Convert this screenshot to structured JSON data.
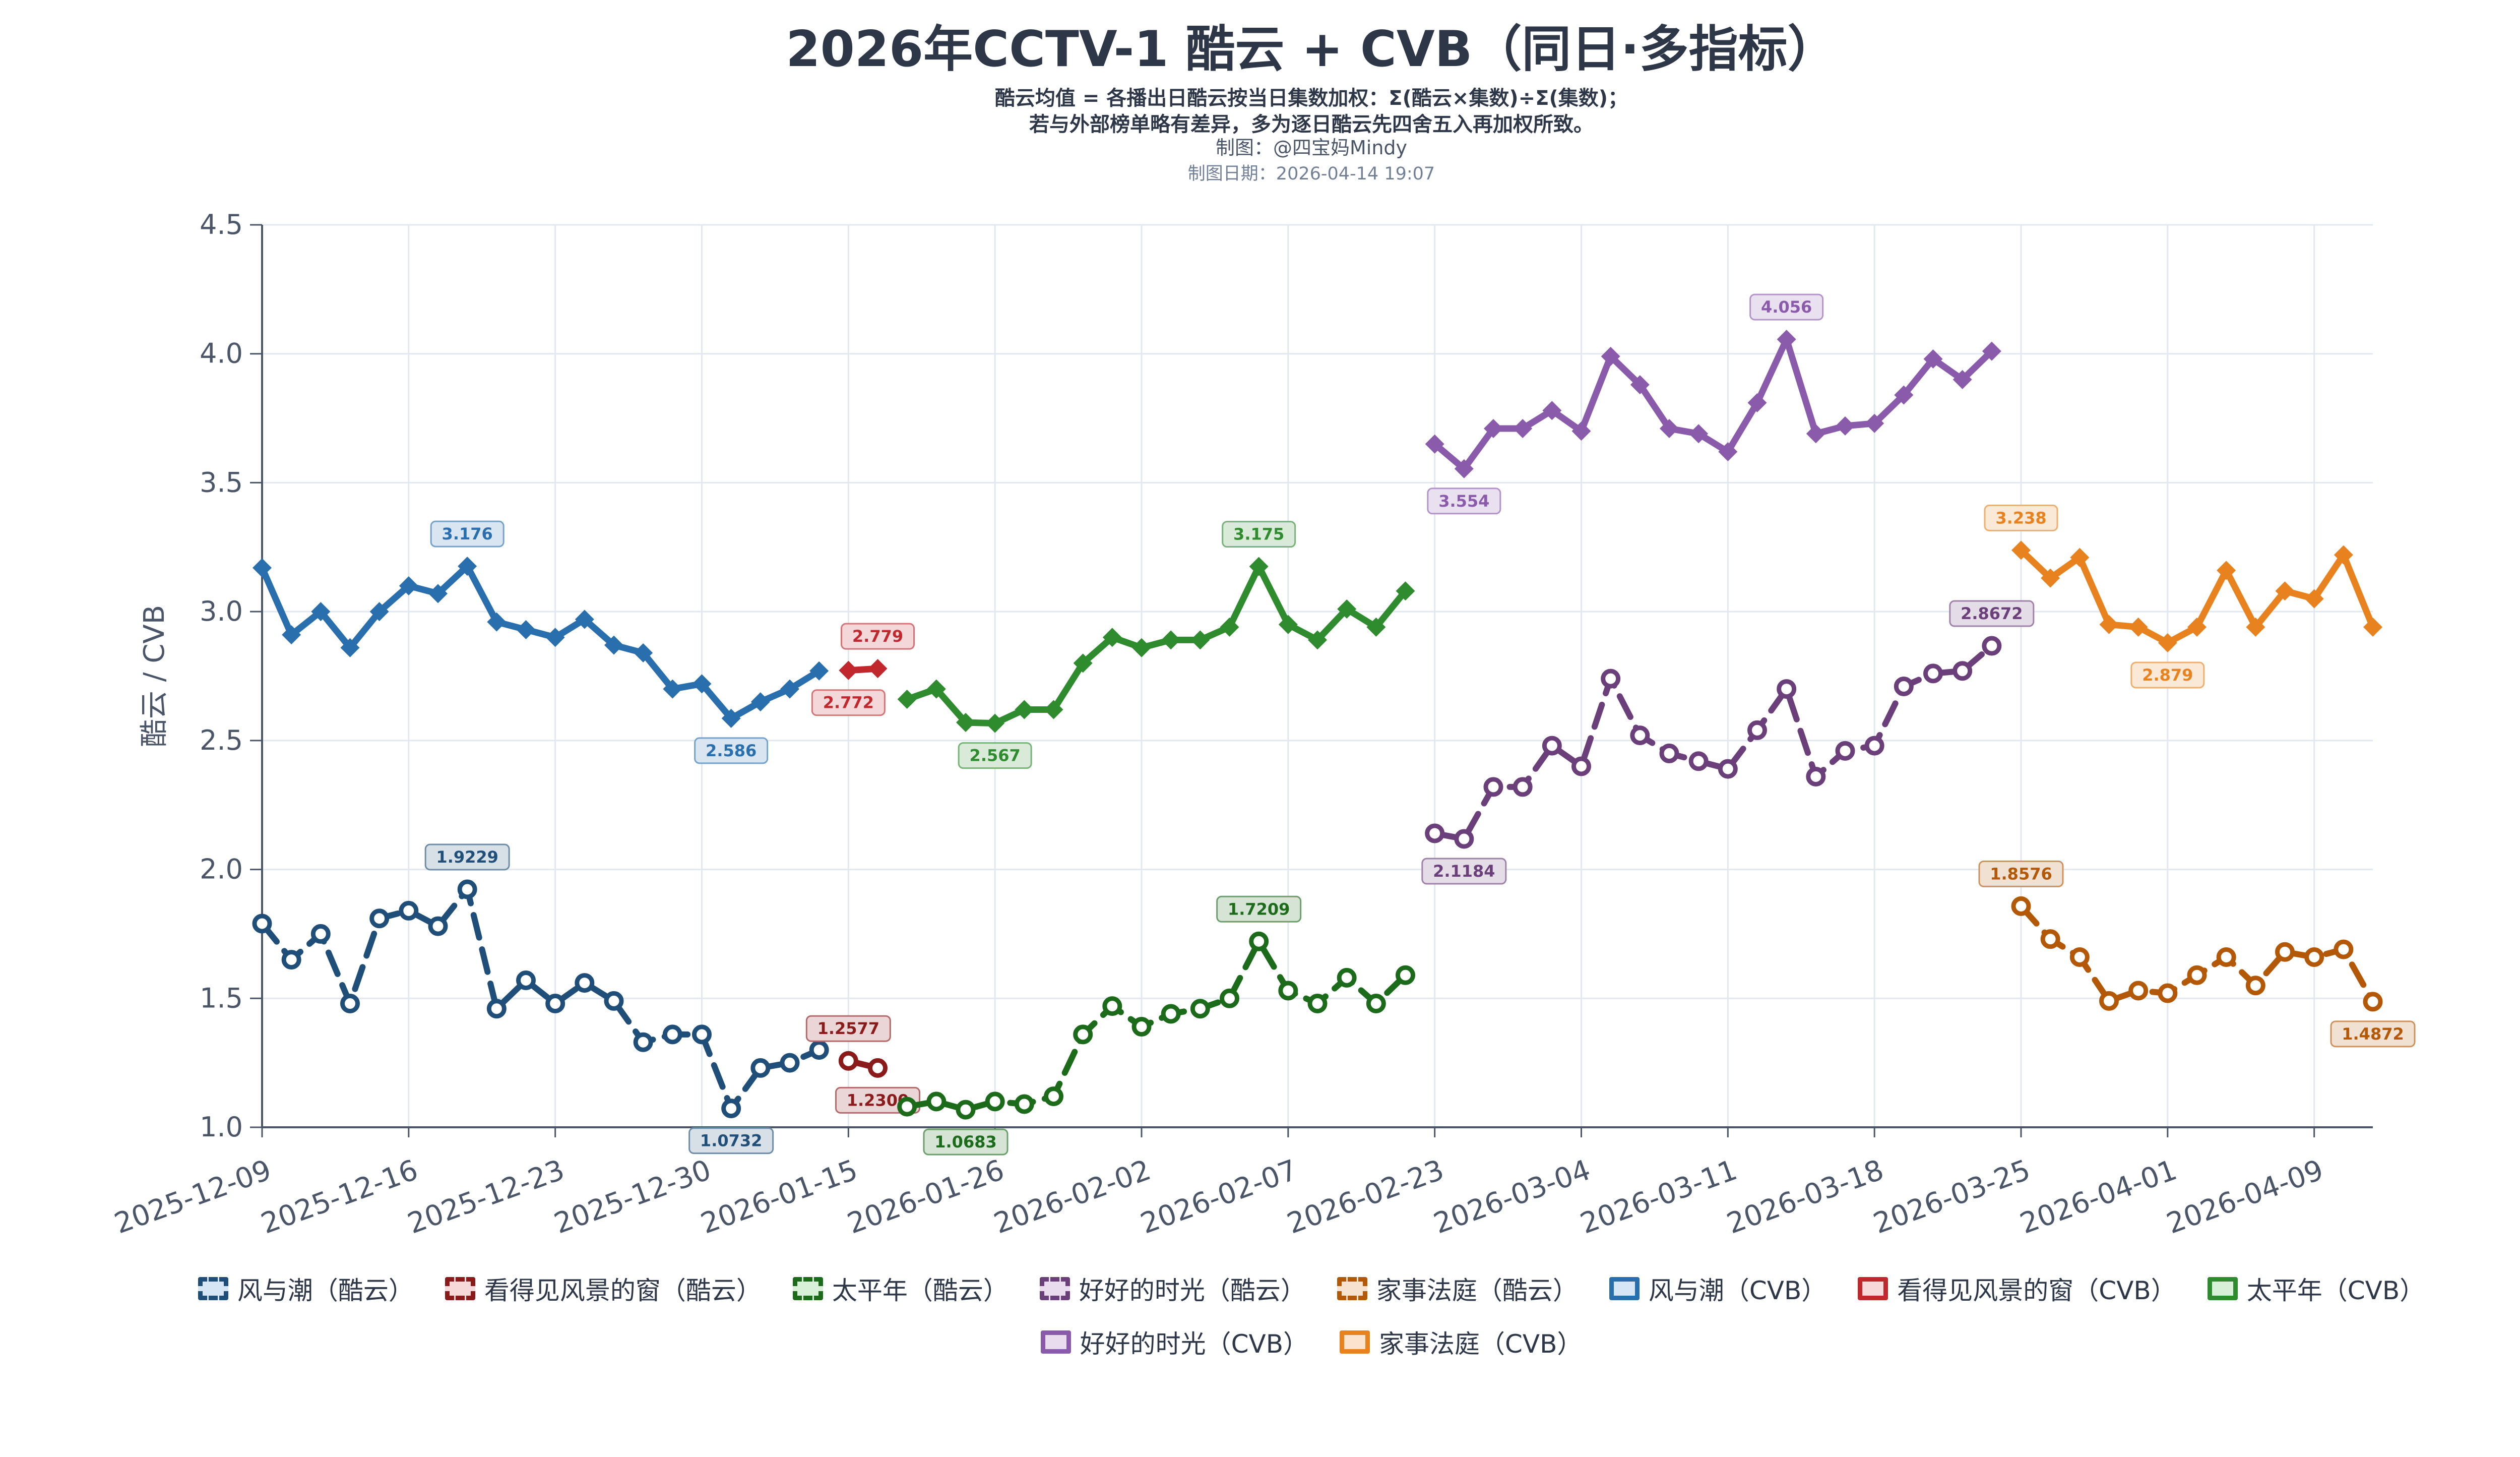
{
  "header": {
    "title": "2026年CCTV-1 酷云 + CVB（同日·多指标）",
    "subtitle_line1": "酷云均值 = 各播出日酷云按当日集数加权：Σ(酷云×集数)÷Σ(集数)；",
    "subtitle_line2": "若与外部榜单略有差异，多为逐日酷云先四舍五入再加权所致。",
    "author": "制图：@四宝妈Mindy",
    "date": "制图日期：2026-04-14 19:07"
  },
  "chart_data": {
    "type": "line",
    "ylabel": "酷云 / CVB",
    "ylim": [
      1.0,
      4.5
    ],
    "yticks": [
      "1.0",
      "1.5",
      "2.0",
      "2.5",
      "3.0",
      "3.5",
      "4.0",
      "4.5"
    ],
    "x_range": [
      0,
      72
    ],
    "xticks": [
      {
        "label": "2025-12-09",
        "x": 0
      },
      {
        "label": "2025-12-16",
        "x": 5
      },
      {
        "label": "2025-12-23",
        "x": 10
      },
      {
        "label": "2025-12-30",
        "x": 15
      },
      {
        "label": "2026-01-15",
        "x": 20
      },
      {
        "label": "2026-01-26",
        "x": 25
      },
      {
        "label": "2026-02-02",
        "x": 30
      },
      {
        "label": "2026-02-07",
        "x": 35
      },
      {
        "label": "2026-02-23",
        "x": 40
      },
      {
        "label": "2026-03-04",
        "x": 45
      },
      {
        "label": "2026-03-11",
        "x": 50
      },
      {
        "label": "2026-03-18",
        "x": 55
      },
      {
        "label": "2026-03-25",
        "x": 60
      },
      {
        "label": "2026-04-01",
        "x": 65
      },
      {
        "label": "2026-04-09",
        "x": 70
      }
    ],
    "series": [
      {
        "name": "风与潮（酷云）",
        "metric": "kuyun",
        "color": "#1f4e79",
        "x_start": 0,
        "values": [
          1.79,
          1.65,
          1.75,
          1.48,
          1.81,
          1.84,
          1.78,
          1.9229,
          1.46,
          1.57,
          1.48,
          1.56,
          1.49,
          1.33,
          1.36,
          1.36,
          1.0732,
          1.23,
          1.25,
          1.3
        ],
        "labels": [
          {
            "i": 7,
            "text": "1.9229",
            "pos": "above"
          },
          {
            "i": 16,
            "text": "1.0732",
            "pos": "below"
          }
        ]
      },
      {
        "name": "看得见风景的窗（酷云）",
        "metric": "kuyun",
        "color": "#8b1a1a",
        "x_start": 20,
        "values": [
          1.2577,
          1.23
        ],
        "labels": [
          {
            "i": 0,
            "text": "1.2577",
            "pos": "above"
          },
          {
            "i": 1,
            "text": "1.2300",
            "pos": "below"
          }
        ]
      },
      {
        "name": "太平年（酷云）",
        "metric": "kuyun",
        "color": "#1b6b1b",
        "x_start": 22,
        "values": [
          1.08,
          1.1,
          1.0683,
          1.1,
          1.09,
          1.12,
          1.36,
          1.47,
          1.39,
          1.44,
          1.46,
          1.5,
          1.7209,
          1.53,
          1.48,
          1.58,
          1.48,
          1.59
        ],
        "labels": [
          {
            "i": 2,
            "text": "1.0683",
            "pos": "below"
          },
          {
            "i": 12,
            "text": "1.7209",
            "pos": "above"
          }
        ]
      },
      {
        "name": "好好的时光（酷云）",
        "metric": "kuyun",
        "color": "#6b3f7a",
        "x_start": 40,
        "values": [
          2.14,
          2.1184,
          2.32,
          2.32,
          2.48,
          2.4,
          2.74,
          2.52,
          2.45,
          2.42,
          2.39,
          2.54,
          2.7,
          2.36,
          2.46,
          2.48,
          2.71,
          2.76,
          2.77,
          2.8672
        ],
        "labels": [
          {
            "i": 1,
            "text": "2.1184",
            "pos": "below"
          },
          {
            "i": 19,
            "text": "2.8672",
            "pos": "above"
          }
        ]
      },
      {
        "name": "家事法庭（酷云）",
        "metric": "kuyun",
        "color": "#b35806",
        "x_start": 60,
        "values": [
          1.8576,
          1.73,
          1.66,
          1.49,
          1.53,
          1.52,
          1.59,
          1.66,
          1.55,
          1.68,
          1.66,
          1.69,
          1.4872
        ],
        "labels": [
          {
            "i": 0,
            "text": "1.8576",
            "pos": "above"
          },
          {
            "i": 12,
            "text": "1.4872",
            "pos": "below"
          }
        ]
      },
      {
        "name": "风与潮（CVB）",
        "metric": "cvb",
        "color": "#2a6fad",
        "x_start": 0,
        "values": [
          3.17,
          2.91,
          3.0,
          2.86,
          3.0,
          3.1,
          3.07,
          3.176,
          2.96,
          2.93,
          2.9,
          2.97,
          2.87,
          2.84,
          2.7,
          2.72,
          2.586,
          2.65,
          2.7,
          2.77
        ],
        "labels": [
          {
            "i": 7,
            "text": "3.176",
            "pos": "above"
          },
          {
            "i": 16,
            "text": "2.586",
            "pos": "below"
          }
        ]
      },
      {
        "name": "看得见风景的窗（CVB）",
        "metric": "cvb",
        "color": "#c0282d",
        "x_start": 20,
        "values": [
          2.772,
          2.779
        ],
        "labels": [
          {
            "i": 1,
            "text": "2.779",
            "pos": "above"
          },
          {
            "i": 0,
            "text": "2.772",
            "pos": "below"
          }
        ]
      },
      {
        "name": "太平年（CVB）",
        "metric": "cvb",
        "color": "#2e8b2e",
        "x_start": 22,
        "values": [
          2.66,
          2.7,
          2.57,
          2.567,
          2.62,
          2.62,
          2.8,
          2.9,
          2.86,
          2.89,
          2.89,
          2.94,
          3.175,
          2.95,
          2.89,
          3.01,
          2.94,
          3.08
        ],
        "labels": [
          {
            "i": 3,
            "text": "2.567",
            "pos": "below"
          },
          {
            "i": 12,
            "text": "3.175",
            "pos": "above"
          }
        ]
      },
      {
        "name": "好好的时光（CVB）",
        "metric": "cvb",
        "color": "#8a5aab",
        "x_start": 40,
        "values": [
          3.65,
          3.554,
          3.71,
          3.71,
          3.78,
          3.7,
          3.99,
          3.88,
          3.71,
          3.69,
          3.62,
          3.81,
          4.056,
          3.69,
          3.72,
          3.73,
          3.84,
          3.98,
          3.9,
          4.01
        ],
        "labels": [
          {
            "i": 1,
            "text": "3.554",
            "pos": "below"
          },
          {
            "i": 12,
            "text": "4.056",
            "pos": "above"
          }
        ]
      },
      {
        "name": "家事法庭（CVB）",
        "metric": "cvb",
        "color": "#e8821e",
        "x_start": 60,
        "values": [
          3.238,
          3.13,
          3.21,
          2.95,
          2.94,
          2.879,
          2.94,
          3.16,
          2.94,
          3.08,
          3.05,
          3.22,
          2.94
        ],
        "labels": [
          {
            "i": 0,
            "text": "3.238",
            "pos": "above"
          },
          {
            "i": 5,
            "text": "2.879",
            "pos": "below"
          }
        ]
      }
    ]
  },
  "legend": {
    "row1": [
      {
        "label": "风与潮（酷云）",
        "color": "#1f4e79",
        "style": "dash",
        "fill": "#d6e6f5"
      },
      {
        "label": "看得见风景的窗（酷云）",
        "color": "#8b1a1a",
        "style": "dash",
        "fill": "#f8d9d9"
      },
      {
        "label": "太平年（酷云）",
        "color": "#1b6b1b",
        "style": "dash",
        "fill": "#d8efd8"
      },
      {
        "label": "好好的时光（酷云）",
        "color": "#6b3f7a",
        "style": "dash",
        "fill": "#e9dcef"
      },
      {
        "label": "家事法庭（酷云）",
        "color": "#b35806",
        "style": "dash",
        "fill": "#f7e2cf"
      },
      {
        "label": "风与潮（CVB）",
        "color": "#2a6fad",
        "style": "solid",
        "fill": "#d6e6f5"
      },
      {
        "label": "看得见风景的窗（CVB）",
        "color": "#c0282d",
        "style": "solid",
        "fill": "#f8d9d9"
      },
      {
        "label": "太平年（CVB）",
        "color": "#2e8b2e",
        "style": "solid",
        "fill": "#d8efd8"
      }
    ],
    "row2": [
      {
        "label": "好好的时光（CVB）",
        "color": "#8a5aab",
        "style": "solid",
        "fill": "#e9dcef"
      },
      {
        "label": "家事法庭（CVB）",
        "color": "#e8821e",
        "style": "solid",
        "fill": "#fbe3cd"
      }
    ]
  }
}
